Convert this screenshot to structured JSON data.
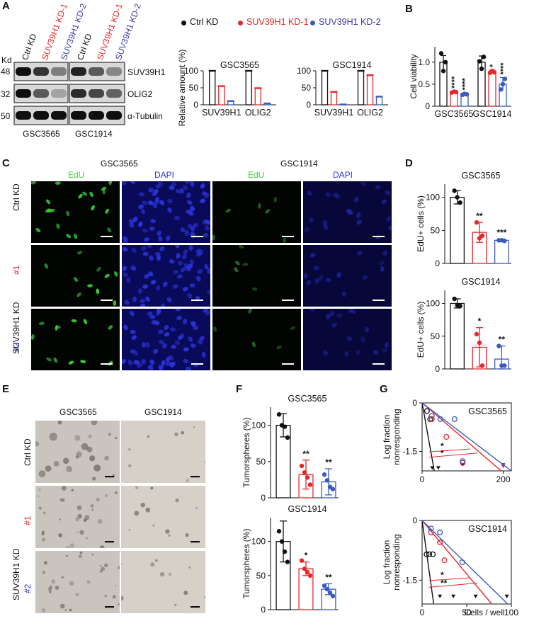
{
  "colors": {
    "ctrl": "#111111",
    "kd1": "#e8262a",
    "kd2": "#3a5bbd",
    "edu": "#3bd23b",
    "dapi": "#2a33d6"
  },
  "panel_labels": [
    "A",
    "B",
    "C",
    "D",
    "E",
    "F",
    "G"
  ],
  "panelA": {
    "kd_label": "Kd",
    "lane_labels": [
      "Ctrl KD",
      "SUV39H1 KD-1",
      "SUV39H1 KD-2",
      "Ctrl KD",
      "SUV39H1 KD-1",
      "SUV39H1 KD-2"
    ],
    "mw": [
      "48",
      "32",
      "50"
    ],
    "proteins": [
      "SUV39H1",
      "OLIG2",
      "α-Tubulin"
    ],
    "cell_lines": [
      "GSC3565",
      "GSC1914"
    ],
    "bands": [
      [
        1.0,
        0.8,
        0.4,
        0.9,
        0.6,
        0.35
      ],
      [
        1.0,
        0.6,
        0.2,
        0.85,
        0.7,
        0.55
      ],
      [
        1.0,
        1.0,
        1.0,
        1.0,
        1.0,
        1.0
      ]
    ]
  },
  "legend": {
    "items": [
      "Ctrl KD",
      "SUV39H1 KD-1",
      "SUV39H1 KD-2"
    ]
  },
  "icons": {
    "dot": "legend-dot-icon",
    "triangle": "nonresponder-triangle-icon"
  },
  "chart_data": [
    {
      "id": "A_right_3565",
      "type": "bar",
      "title": "GSC3565",
      "ylabel": "Relative amount (%)",
      "ylim": [
        0,
        100
      ],
      "yticks": [
        0,
        50,
        100
      ],
      "categories": [
        "SUV39H1",
        "OLIG2"
      ],
      "series": [
        {
          "name": "Ctrl KD",
          "values": [
            100,
            100
          ]
        },
        {
          "name": "SUV39H1 KD-1",
          "values": [
            55,
            49
          ]
        },
        {
          "name": "SUV39H1 KD-2",
          "values": [
            11,
            4
          ]
        }
      ]
    },
    {
      "id": "A_right_1914",
      "type": "bar",
      "title": "GSC1914",
      "ylabel": "",
      "ylim": [
        0,
        100
      ],
      "yticks": [
        0,
        50,
        100
      ],
      "categories": [
        "SUV39H1",
        "OLIG2"
      ],
      "series": [
        {
          "name": "Ctrl KD",
          "values": [
            100,
            100
          ]
        },
        {
          "name": "SUV39H1 KD-1",
          "values": [
            38,
            87
          ]
        },
        {
          "name": "SUV39H1 KD-2",
          "values": [
            1,
            24
          ]
        }
      ]
    },
    {
      "id": "B",
      "type": "bar",
      "title": "",
      "ylabel": "Cell viability",
      "ylim": [
        0,
        1.35
      ],
      "yticks": [
        0,
        0.5,
        1.0
      ],
      "ytick_labels": [
        "0",
        "0.5",
        "1.0"
      ],
      "categories": [
        "GSC3565",
        "GSC1914"
      ],
      "series": [
        {
          "name": "Ctrl KD",
          "values": [
            1.0,
            1.0
          ],
          "err": [
            0.15,
            0.14
          ],
          "points": [
            [
              1.2,
              0.8,
              1.0
            ],
            [
              1.02,
              0.85,
              1.12
            ]
          ]
        },
        {
          "name": "SUV39H1 KD-1",
          "values": [
            0.32,
            0.78
          ],
          "err": [
            0.02,
            0.04
          ],
          "points": [
            [
              0.31,
              0.33,
              0.32
            ],
            [
              0.76,
              0.8,
              0.77
            ]
          ]
        },
        {
          "name": "SUV39H1 KD-2",
          "values": [
            0.27,
            0.5
          ],
          "err": [
            0.03,
            0.15
          ],
          "points": [
            [
              0.26,
              0.28,
              0.27
            ],
            [
              0.38,
              0.5,
              0.62
            ]
          ]
        }
      ],
      "sig": [
        [
          "",
          "****",
          "****"
        ],
        [
          "",
          "*",
          "****"
        ]
      ]
    },
    {
      "id": "D_3565",
      "type": "bar",
      "title": "GSC3565",
      "ylabel": "EdU+ cells (%)",
      "ylim": [
        0,
        120
      ],
      "yticks": [
        0,
        50,
        100
      ],
      "categories": [
        "Ctrl KD",
        "SUV39H1 KD-1",
        "SUV39H1 KD-2"
      ],
      "values": [
        100,
        47,
        35
      ],
      "err": [
        10,
        15,
        2
      ],
      "points": [
        [
          110,
          100,
          92
        ],
        [
          62,
          38,
          42
        ],
        [
          35,
          35,
          34
        ]
      ],
      "sig": [
        "",
        "**",
        "***"
      ]
    },
    {
      "id": "D_1914",
      "type": "bar",
      "title": "GSC1914",
      "ylabel": "EdU+ cells (%)",
      "ylim": [
        0,
        120
      ],
      "yticks": [
        0,
        50,
        100
      ],
      "categories": [
        "Ctrl KD",
        "SUV39H1 KD-1",
        "SUV39H1 KD-2"
      ],
      "values": [
        100,
        33,
        15
      ],
      "err": [
        7,
        30,
        20
      ],
      "points": [
        [
          107,
          97,
          96
        ],
        [
          53,
          40,
          5
        ],
        [
          35,
          5,
          5
        ]
      ],
      "sig": [
        "",
        "*",
        "**"
      ]
    },
    {
      "id": "F_3565",
      "type": "bar",
      "title": "GSC3565",
      "ylabel": "Tumorspheres (%)",
      "ylim": [
        0,
        125
      ],
      "yticks": [
        0,
        50,
        100
      ],
      "categories": [
        "Ctrl KD",
        "SUV39H1 KD-1",
        "SUV39H1 KD-2"
      ],
      "values": [
        100,
        32,
        22
      ],
      "err": [
        16,
        20,
        18
      ],
      "points": [
        [
          115,
          100,
          98,
          83
        ],
        [
          44,
          35,
          28,
          18
        ],
        [
          32,
          24,
          15,
          12
        ]
      ],
      "sig": [
        "",
        "**",
        "**"
      ]
    },
    {
      "id": "F_1914",
      "type": "bar",
      "title": "GSC1914",
      "ylabel": "Tumorspheres (%)",
      "ylim": [
        0,
        135
      ],
      "yticks": [
        0,
        50,
        100
      ],
      "categories": [
        "Ctrl KD",
        "SUV39H1 KD-1",
        "SUV39H1 KD-2"
      ],
      "values": [
        100,
        60,
        30
      ],
      "err": [
        30,
        10,
        8
      ],
      "points": [
        [
          115,
          100,
          85,
          70
        ],
        [
          72,
          60,
          55,
          50
        ],
        [
          35,
          30,
          25,
          20
        ]
      ],
      "sig": [
        "",
        "*",
        "**"
      ]
    },
    {
      "id": "G_3565",
      "type": "line",
      "title": "GSC3565",
      "ylabel": "Log fraction nonresponding",
      "xlabel": "",
      "xlim": [
        0,
        220
      ],
      "ylim": [
        -2.1,
        0
      ],
      "xticks": [
        0,
        200
      ],
      "yticks": [
        0,
        -1.5
      ],
      "ytick_labels": [
        "0",
        "-1.5"
      ],
      "series": [
        {
          "name": "Ctrl KD",
          "line": [
            [
              0,
              0
            ],
            [
              30,
              -2.1
            ]
          ],
          "points": [
            [
              12,
              -0.25
            ],
            [
              20,
              -0.5
            ]
          ],
          "nonresponders": [
            [
              25,
              -2.0
            ],
            [
              40,
              -2.0
            ],
            [
              100,
              -1.9
            ]
          ]
        },
        {
          "name": "SUV39H1 KD-1",
          "line": [
            [
              0,
              0
            ],
            [
              195,
              -2.1
            ]
          ],
          "points": [
            [
              24,
              -0.5
            ],
            [
              60,
              -1.05
            ],
            [
              100,
              -1.85
            ]
          ],
          "nonresponders": [
            [
              200,
              -1.95
            ]
          ]
        },
        {
          "name": "SUV39H1 KD-2",
          "line": [
            [
              0,
              0
            ],
            [
              220,
              -2.1
            ]
          ],
          "points": [
            [
              24,
              -0.4
            ],
            [
              45,
              -0.5
            ],
            [
              80,
              -0.5
            ],
            [
              100,
              -1.8
            ]
          ],
          "nonresponders": [
            [
              200,
              -1.9
            ]
          ]
        }
      ],
      "sig": [
        "*",
        "*"
      ]
    },
    {
      "id": "G_1914",
      "type": "line",
      "title": "GSC1914",
      "ylabel": "Log fraction nonresponding",
      "xlabel": "Cells / well",
      "xlim": [
        0,
        100
      ],
      "ylim": [
        -2.1,
        0
      ],
      "xticks": [
        0,
        50,
        100
      ],
      "yticks": [
        0,
        -1.5
      ],
      "ytick_labels": [
        "0",
        "-1.5"
      ],
      "series": [
        {
          "name": "Ctrl KD",
          "line": [
            [
              0,
              0
            ],
            [
              13,
              -2.1
            ]
          ],
          "points": [
            [
              5,
              -0.85
            ],
            [
              8,
              -0.85
            ],
            [
              12,
              -0.85
            ]
          ],
          "nonresponders": [
            [
              20,
              -1.9
            ],
            [
              35,
              -1.9
            ],
            [
              60,
              -1.9
            ],
            [
              95,
              -1.9
            ]
          ]
        },
        {
          "name": "SUV39H1 KD-1",
          "line": [
            [
              0,
              0
            ],
            [
              78,
              -2.1
            ]
          ],
          "points": [
            [
              10,
              -0.3
            ],
            [
              20,
              -0.55
            ],
            [
              25,
              -1.0
            ]
          ],
          "nonresponders": []
        },
        {
          "name": "SUV39H1 KD-2",
          "line": [
            [
              0,
              0
            ],
            [
              96,
              -2.1
            ]
          ],
          "points": [
            [
              10,
              -0.2
            ],
            [
              20,
              -0.3
            ],
            [
              45,
              -1.05
            ]
          ],
          "nonresponders": []
        }
      ],
      "sig": [
        "*",
        "**"
      ]
    }
  ],
  "panelC": {
    "cell_lines": [
      "GSC3565",
      "GSC1914"
    ],
    "channels": [
      "EdU",
      "DAPI",
      "EdU",
      "DAPI"
    ],
    "row_labels": [
      "Ctrl KD",
      "SUV39H1 KD",
      "#1",
      "#2"
    ]
  },
  "panelE": {
    "cell_lines": [
      "GSC3565",
      "GSC1914"
    ],
    "row_labels": [
      "Ctrl KD",
      "SUV39H1 KD",
      "#1",
      "#2"
    ]
  }
}
